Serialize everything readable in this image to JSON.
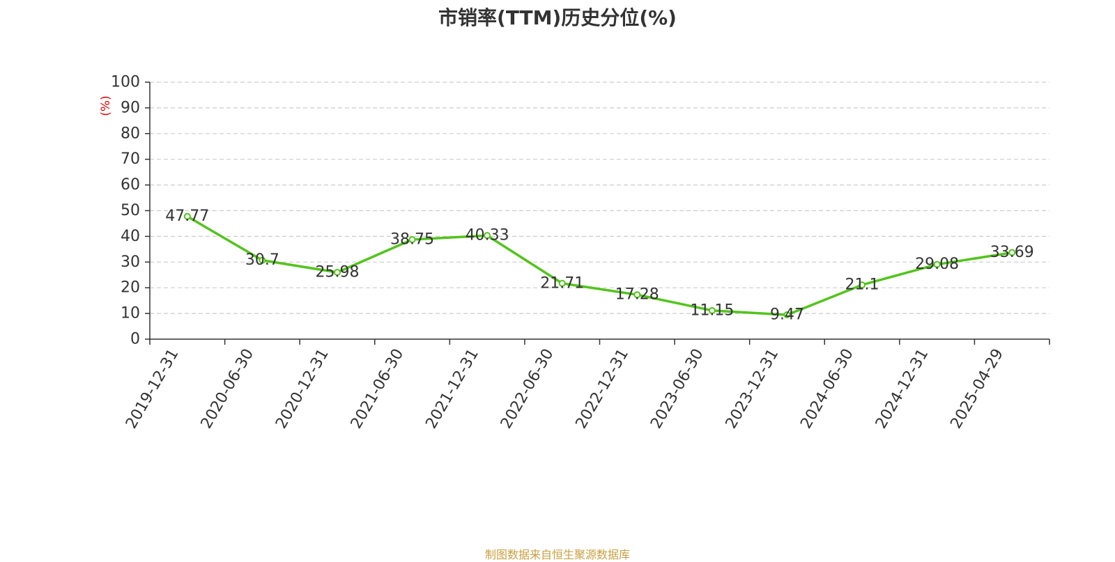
{
  "chart_data": {
    "type": "line",
    "title": "市销率(TTM)历史分位(%)",
    "ylabel": "(%)",
    "xlabel": "",
    "ylim": [
      0,
      100
    ],
    "yticks": [
      "0",
      "10",
      "20",
      "30",
      "40",
      "50",
      "60",
      "70",
      "80",
      "90",
      "100"
    ],
    "categories": [
      "2019-12-31",
      "2020-06-30",
      "2020-12-31",
      "2021-06-30",
      "2021-12-31",
      "2022-06-30",
      "2022-12-31",
      "2023-06-30",
      "2023-12-31",
      "2024-06-30",
      "2024-12-31",
      "2025-04-29"
    ],
    "series": [
      {
        "values": [
          47.77,
          30.7,
          25.98,
          38.75,
          40.33,
          21.71,
          17.28,
          11.15,
          9.47,
          21.1,
          29.08,
          33.69
        ],
        "labels": [
          "47.77",
          "30.7",
          "25.98",
          "38.75",
          "40.33",
          "21.71",
          "17.28",
          "11.15",
          "9.47",
          "21.1",
          "29.08",
          "33.69"
        ]
      }
    ],
    "grid": true,
    "colors": {
      "line": "#52c41a",
      "ylabel": "#e00000",
      "grid": "#cccccc",
      "axis": "#333333",
      "text": "#333333",
      "source": "#c8a040"
    }
  },
  "footer": {
    "source": "制图数据来自恒生聚源数据库"
  }
}
